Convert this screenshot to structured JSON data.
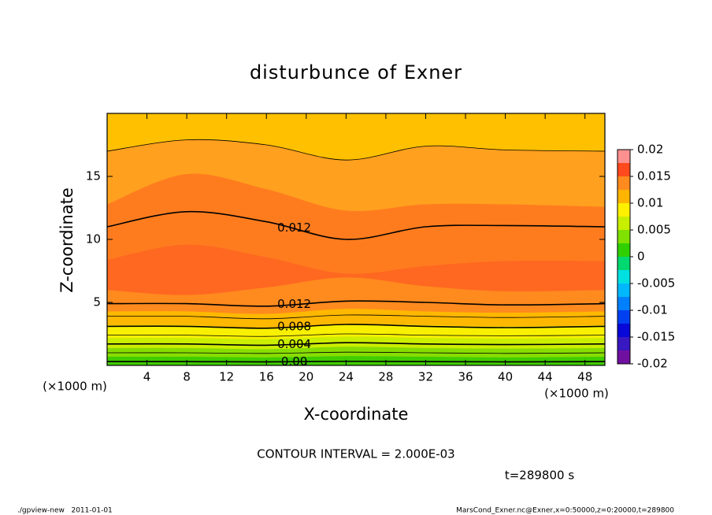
{
  "chart_data": {
    "type": "contour",
    "title": "disturbunce of Exner",
    "x_label": "X-coordinate",
    "y_label": "Z-coordinate",
    "x_unit": "(×1000 m)",
    "y_unit": "(×1000 m)",
    "xlim": [
      0,
      50
    ],
    "ylim": [
      0,
      20
    ],
    "xticks": [
      4,
      8,
      12,
      16,
      20,
      24,
      28,
      32,
      36,
      40,
      44,
      48
    ],
    "yticks": [
      5,
      10,
      15
    ],
    "x": [
      0,
      8,
      16,
      24,
      32,
      40,
      50
    ],
    "fill_boundaries": [
      {
        "level": 0.0025,
        "z": [
          0.7,
          0.7,
          0.65,
          0.75,
          0.7,
          0.65,
          0.7
        ]
      },
      {
        "level": 0.005,
        "z": [
          1.4,
          1.4,
          1.3,
          1.5,
          1.4,
          1.35,
          1.4
        ]
      },
      {
        "level": 0.0075,
        "z": [
          2.2,
          2.2,
          2.1,
          2.3,
          2.2,
          2.15,
          2.2
        ]
      },
      {
        "level": 0.01,
        "z": [
          3.2,
          3.2,
          3.0,
          3.3,
          3.2,
          3.1,
          3.2
        ]
      },
      {
        "level": 0.0125,
        "z": [
          4.3,
          4.3,
          4.1,
          4.5,
          4.3,
          4.2,
          4.3
        ]
      },
      {
        "level": 0.015,
        "z": [
          6.0,
          5.6,
          6.2,
          7.0,
          6.3,
          5.9,
          6.0
        ]
      },
      {
        "level": 0.015,
        "z": [
          8.4,
          9.6,
          8.6,
          7.3,
          7.9,
          8.3,
          8.3
        ]
      },
      {
        "level": 0.0125,
        "z": [
          12.8,
          15.2,
          14.0,
          12.3,
          12.8,
          12.8,
          12.6
        ]
      },
      {
        "level": 0.01,
        "z": [
          17.0,
          17.9,
          17.5,
          16.3,
          17.4,
          17.1,
          17.0
        ]
      }
    ],
    "fill_colors": [
      "#40cc00",
      "#88dd00",
      "#ccee00",
      "#f8f000",
      "#ffb800",
      "#ff8a1e",
      "#ff6820",
      "#ff7c1e",
      "#ffa01e",
      "#ffc000"
    ],
    "contours": [
      {
        "level": 0,
        "z": [
          0.3,
          0.3,
          0.28,
          0.32,
          0.3,
          0.28,
          0.3
        ],
        "label": "0.00"
      },
      {
        "level": 0.002,
        "z": [
          1.0,
          1.0,
          0.95,
          1.05,
          1.0,
          0.95,
          1.0
        ]
      },
      {
        "level": 0.004,
        "z": [
          1.7,
          1.7,
          1.6,
          1.8,
          1.7,
          1.65,
          1.7
        ],
        "label": "0.004"
      },
      {
        "level": 0.006,
        "z": [
          2.4,
          2.4,
          2.3,
          2.5,
          2.4,
          2.35,
          2.4
        ]
      },
      {
        "level": 0.008,
        "z": [
          3.1,
          3.1,
          2.95,
          3.25,
          3.1,
          3.0,
          3.1
        ],
        "label": "0.008"
      },
      {
        "level": 0.01,
        "z": [
          3.9,
          3.9,
          3.7,
          4.0,
          3.9,
          3.8,
          3.9
        ]
      },
      {
        "level": 0.012,
        "z": [
          4.9,
          4.9,
          4.7,
          5.1,
          5.0,
          4.8,
          4.9
        ],
        "label": "0.012"
      },
      {
        "level": 0.012,
        "z": [
          11.0,
          12.2,
          11.4,
          10.0,
          11.0,
          11.1,
          11.0
        ],
        "label": "0.012"
      },
      {
        "level": 0.01,
        "z": [
          17.0,
          17.9,
          17.5,
          16.3,
          17.4,
          17.1,
          17.0
        ]
      }
    ],
    "colorbar": {
      "levels": [
        -0.02,
        -0.0175,
        -0.015,
        -0.0125,
        -0.01,
        -0.0075,
        -0.005,
        -0.0025,
        0,
        0.0025,
        0.005,
        0.0075,
        0.01,
        0.0125,
        0.015,
        0.0175,
        0.02
      ],
      "colors": [
        "#7010a0",
        "#3818c0",
        "#0808d8",
        "#0040f0",
        "#0080ff",
        "#00b8ff",
        "#00e0e0",
        "#00d870",
        "#30d000",
        "#80e000",
        "#c8ee00",
        "#fff000",
        "#ffb400",
        "#ff8a1e",
        "#ff4a1e",
        "#ff9090"
      ],
      "ticks": [
        -0.02,
        -0.015,
        -0.01,
        -0.005,
        0,
        0.005,
        0.01,
        0.015,
        0.02
      ]
    },
    "contour_interval": "CONTOUR INTERVAL = 2.000E-03",
    "time": "t=289800 s",
    "footer_left": "./gpview-new   2011-01-01",
    "footer_right": "MarsCond_Exner.nc@Exner,x=0:50000,z=0:20000,t=289800"
  }
}
